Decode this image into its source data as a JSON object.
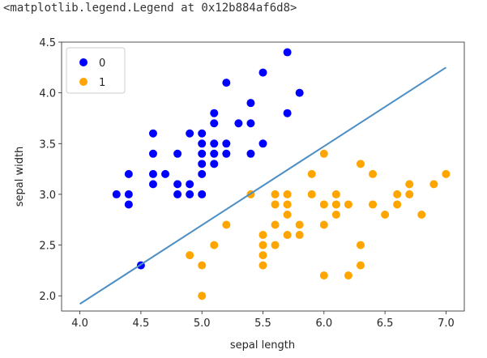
{
  "output_repr": "<matplotlib.legend.Legend at 0x12b884af6d8>",
  "chart_data": {
    "type": "scatter",
    "xlabel": "sepal length",
    "ylabel": "sepal width",
    "xlim": [
      3.85,
      7.15
    ],
    "ylim": [
      1.85,
      4.5
    ],
    "xticks": [
      "4.0",
      "4.5",
      "5.0",
      "5.5",
      "6.0",
      "6.5",
      "7.0"
    ],
    "yticks": [
      "2.0",
      "2.5",
      "3.0",
      "3.5",
      "4.0",
      "4.5"
    ],
    "legend_position": "top-left",
    "series": [
      {
        "name": "0",
        "color": "#0000ff",
        "points": [
          [
            4.3,
            3.0
          ],
          [
            4.4,
            2.9
          ],
          [
            4.4,
            3.0
          ],
          [
            4.4,
            3.2
          ],
          [
            4.5,
            2.3
          ],
          [
            4.6,
            3.1
          ],
          [
            4.6,
            3.2
          ],
          [
            4.6,
            3.4
          ],
          [
            4.6,
            3.6
          ],
          [
            4.7,
            3.2
          ],
          [
            4.8,
            3.0
          ],
          [
            4.8,
            3.1
          ],
          [
            4.8,
            3.4
          ],
          [
            4.9,
            3.0
          ],
          [
            4.9,
            3.1
          ],
          [
            4.9,
            3.6
          ],
          [
            5.0,
            3.0
          ],
          [
            5.0,
            3.2
          ],
          [
            5.0,
            3.3
          ],
          [
            5.0,
            3.4
          ],
          [
            5.0,
            3.5
          ],
          [
            5.0,
            3.6
          ],
          [
            5.1,
            3.3
          ],
          [
            5.1,
            3.4
          ],
          [
            5.1,
            3.5
          ],
          [
            5.1,
            3.7
          ],
          [
            5.1,
            3.8
          ],
          [
            5.2,
            3.4
          ],
          [
            5.2,
            3.5
          ],
          [
            5.2,
            4.1
          ],
          [
            5.3,
            3.7
          ],
          [
            5.4,
            3.4
          ],
          [
            5.4,
            3.7
          ],
          [
            5.4,
            3.9
          ],
          [
            5.5,
            3.5
          ],
          [
            5.5,
            4.2
          ],
          [
            5.7,
            3.8
          ],
          [
            5.7,
            4.4
          ],
          [
            5.8,
            4.0
          ]
        ]
      },
      {
        "name": "1",
        "color": "#ffa500",
        "points": [
          [
            4.9,
            2.4
          ],
          [
            5.0,
            2.0
          ],
          [
            5.0,
            2.3
          ],
          [
            5.1,
            2.5
          ],
          [
            5.2,
            2.7
          ],
          [
            5.4,
            3.0
          ],
          [
            5.5,
            2.3
          ],
          [
            5.5,
            2.4
          ],
          [
            5.5,
            2.5
          ],
          [
            5.5,
            2.6
          ],
          [
            5.6,
            2.5
          ],
          [
            5.6,
            2.7
          ],
          [
            5.6,
            2.9
          ],
          [
            5.6,
            3.0
          ],
          [
            5.7,
            2.6
          ],
          [
            5.7,
            2.8
          ],
          [
            5.7,
            2.9
          ],
          [
            5.7,
            3.0
          ],
          [
            5.8,
            2.6
          ],
          [
            5.8,
            2.7
          ],
          [
            5.9,
            3.0
          ],
          [
            5.9,
            3.2
          ],
          [
            6.0,
            2.2
          ],
          [
            6.0,
            2.7
          ],
          [
            6.0,
            2.9
          ],
          [
            6.0,
            3.4
          ],
          [
            6.1,
            2.8
          ],
          [
            6.1,
            2.9
          ],
          [
            6.1,
            3.0
          ],
          [
            6.2,
            2.2
          ],
          [
            6.2,
            2.9
          ],
          [
            6.3,
            2.3
          ],
          [
            6.3,
            2.5
          ],
          [
            6.3,
            3.3
          ],
          [
            6.4,
            2.9
          ],
          [
            6.4,
            3.2
          ],
          [
            6.5,
            2.8
          ],
          [
            6.6,
            2.9
          ],
          [
            6.6,
            3.0
          ],
          [
            6.7,
            3.0
          ],
          [
            6.7,
            3.1
          ],
          [
            6.8,
            2.8
          ],
          [
            6.9,
            3.1
          ],
          [
            7.0,
            3.2
          ]
        ]
      }
    ],
    "decision_line": {
      "color": "#4c8fc6",
      "from": [
        4.0,
        1.92
      ],
      "to": [
        7.0,
        4.25
      ]
    }
  }
}
